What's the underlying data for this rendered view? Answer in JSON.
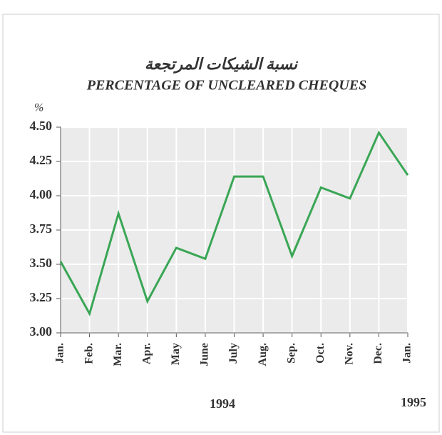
{
  "chart_data": {
    "type": "line",
    "title": "نسبة الشيكات المرتجعة",
    "subtitle": "PERCENTAGE OF UNCLEARED CHEQUES",
    "y_label": "%",
    "annotations": [
      "1994",
      "1995"
    ],
    "categories": [
      "Jan.",
      "Feb.",
      "Mar.",
      "Apr.",
      "May",
      "June",
      "July",
      "Aug.",
      "Sep.",
      "Oct.",
      "Nov.",
      "Dec.",
      "Jan."
    ],
    "values": [
      3.52,
      3.14,
      3.87,
      3.23,
      3.62,
      3.54,
      4.14,
      4.14,
      3.56,
      4.06,
      3.98,
      4.46,
      4.15
    ],
    "color": "#3aa655",
    "ylim": [
      3,
      4.5
    ],
    "yticks": [
      {
        "value": 3,
        "label": "3.00"
      },
      3.25,
      {
        "value": 3.5,
        "label": "3.50"
      },
      3.75,
      {
        "value": 4,
        "label": "4.00"
      },
      4.25,
      {
        "value": 4.5,
        "label": "4.50"
      }
    ],
    "grid": true
  }
}
